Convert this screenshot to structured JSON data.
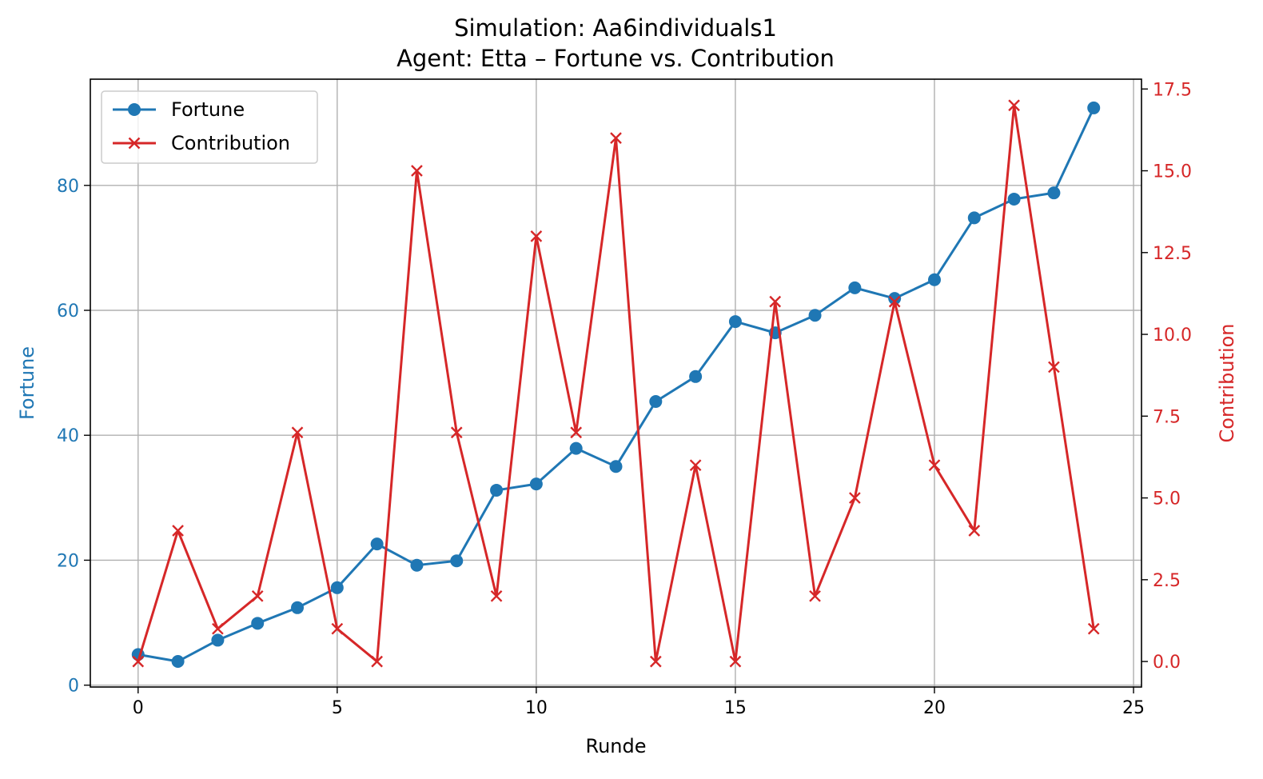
{
  "colors": {
    "fortune": "#1f77b4",
    "contribution": "#d62728",
    "grid": "#b0b0b0",
    "axes": "#000000"
  },
  "chart_data": {
    "type": "line",
    "title": "Simulation: Aa6individuals1",
    "subtitle": "Agent: Etta – Fortune vs. Contribution",
    "xlabel": "Runde",
    "ylabel_left": "Fortune",
    "ylabel_right": "Contribution",
    "xlim": [
      -1.2,
      25.2
    ],
    "ylim_left": [
      -0.3,
      97
    ],
    "ylim_right": [
      -0.78,
      17.8
    ],
    "x_ticks": [
      0,
      5,
      10,
      15,
      20,
      25
    ],
    "y_left_ticks": [
      0,
      20,
      40,
      60,
      80
    ],
    "y_right_ticks": [
      "0.0",
      "2.5",
      "5.0",
      "7.5",
      "10.0",
      "12.5",
      "15.0",
      "17.5"
    ],
    "grid": true,
    "legend_position": "upper left",
    "x": [
      0,
      1,
      2,
      3,
      4,
      5,
      6,
      7,
      8,
      9,
      10,
      11,
      12,
      13,
      14,
      15,
      16,
      17,
      18,
      19,
      20,
      21,
      22,
      23,
      24
    ],
    "series": [
      {
        "name": "Fortune",
        "axis": "left",
        "marker": "circle",
        "values": [
          4.9,
          3.8,
          7.2,
          9.9,
          12.4,
          15.6,
          22.6,
          19.2,
          19.9,
          31.2,
          32.2,
          37.9,
          35.0,
          45.4,
          49.4,
          58.2,
          56.4,
          59.2,
          63.6,
          61.9,
          64.9,
          74.8,
          77.8,
          78.8,
          92.4
        ]
      },
      {
        "name": "Contribution",
        "axis": "right",
        "marker": "x",
        "values": [
          0,
          4,
          1,
          2,
          7,
          1,
          0,
          15,
          7,
          2,
          13,
          7,
          16,
          0,
          6,
          0,
          11,
          2,
          5,
          11,
          6,
          4,
          17,
          9,
          1
        ]
      }
    ]
  }
}
